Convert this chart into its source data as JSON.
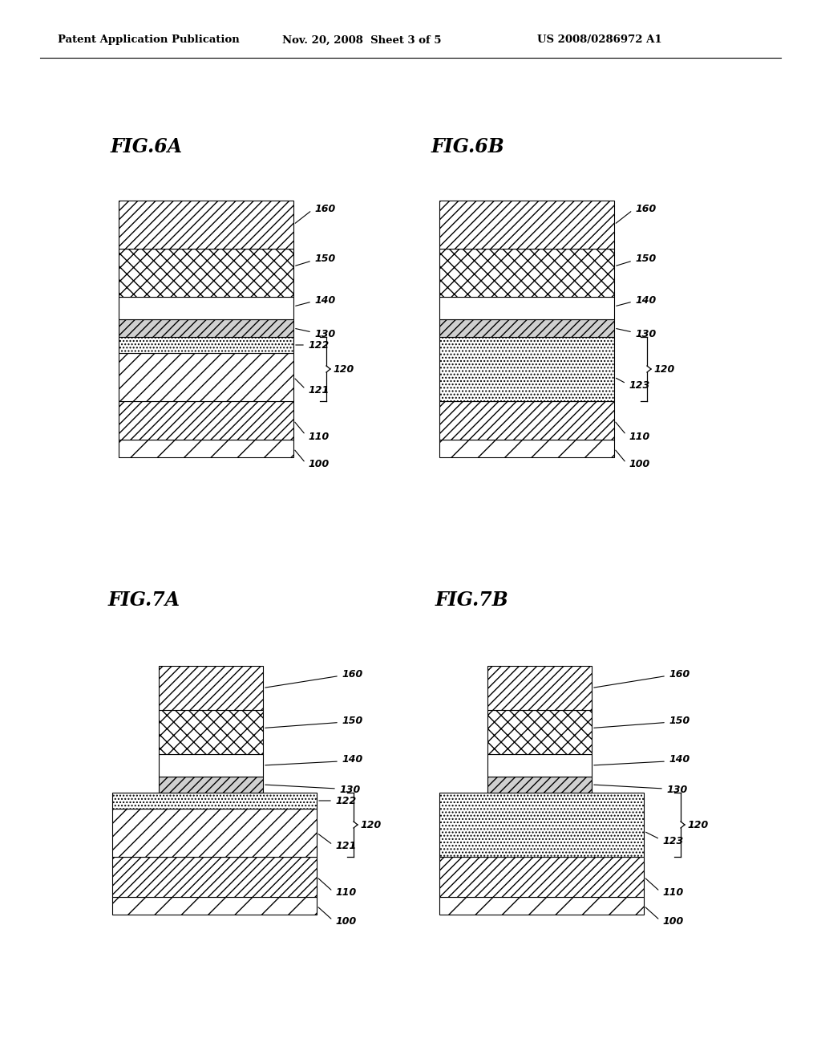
{
  "header_left": "Patent Application Publication",
  "header_mid": "Nov. 20, 2008  Sheet 3 of 5",
  "header_right": "US 2008/0286972 A1",
  "bg_color": "#ffffff"
}
